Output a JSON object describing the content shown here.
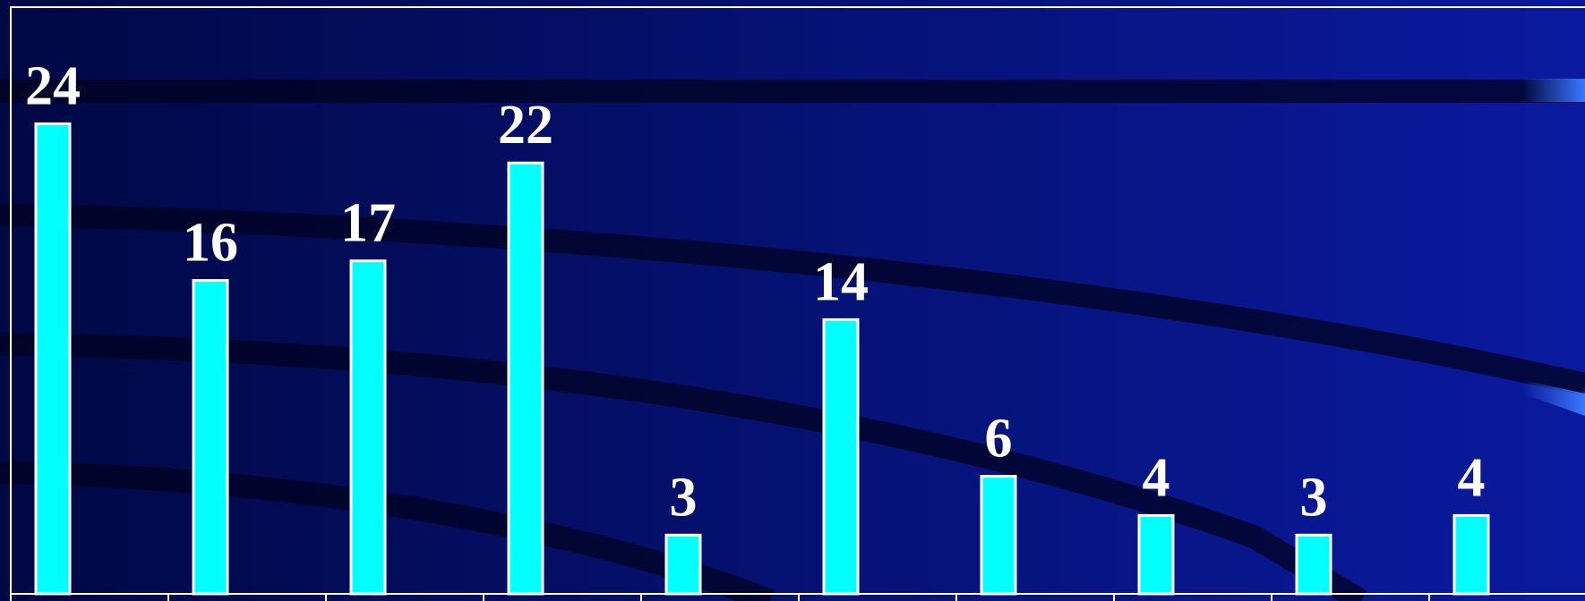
{
  "colors": {
    "background_left": "#000844",
    "background_right": "#0a1aa0",
    "bar_fill": "#00ffff",
    "bar_stroke": "#ffffff",
    "label": "#ffffff",
    "accent": "#3a78ff"
  },
  "chart_data": {
    "type": "bar",
    "title": "",
    "xlabel": "",
    "ylabel": "",
    "categories": [
      "",
      "",
      "",
      "",
      "",
      "",
      "",
      "",
      "",
      ""
    ],
    "values": [
      24,
      16,
      17,
      22,
      3,
      14,
      6,
      4,
      3,
      4
    ],
    "ylim": [
      0,
      30
    ],
    "grid": false,
    "legend": "none",
    "data_labels": true
  }
}
